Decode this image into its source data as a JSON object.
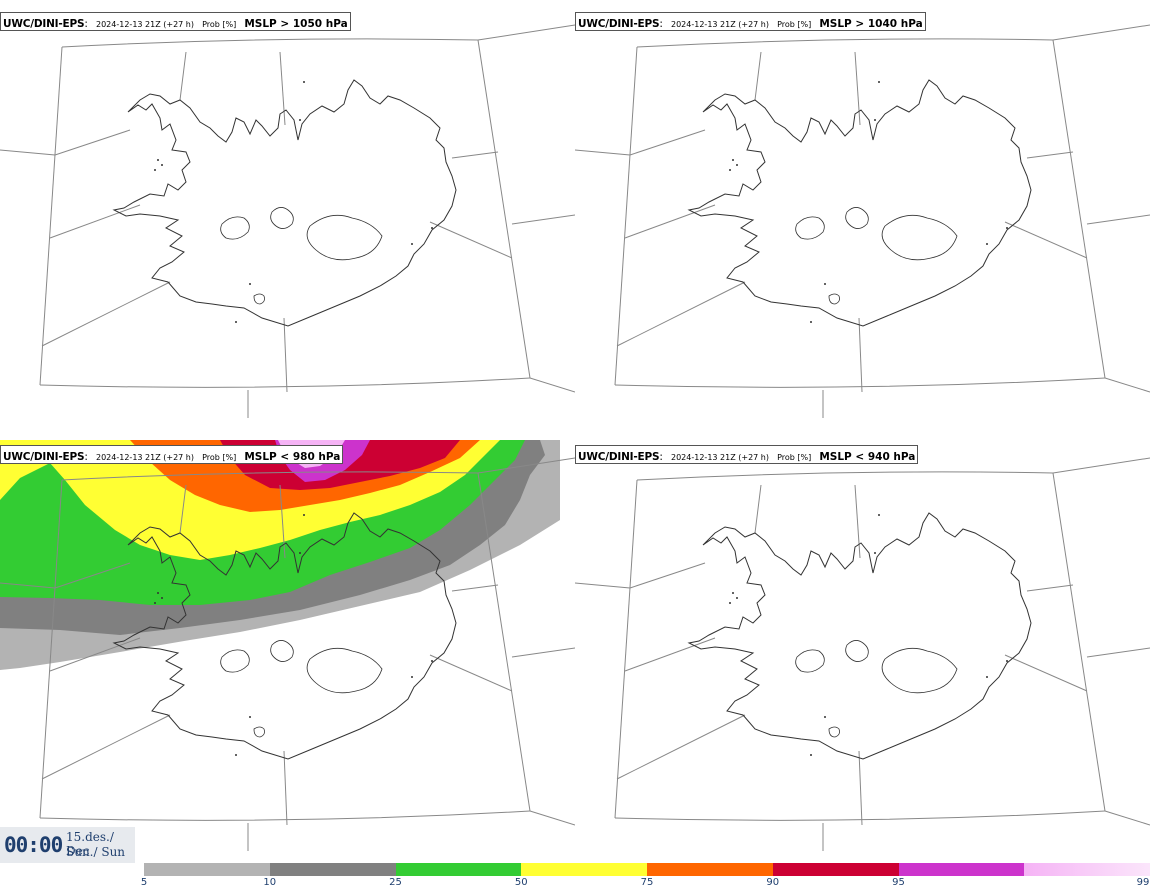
{
  "model": "UWC/DINI-EPS",
  "run_info": "2024-12-13 21Z (+27 h)",
  "prob_label": "Prob [%]",
  "panels": [
    {
      "id": "tl",
      "threshold": "MSLP > 1050 hPa",
      "has_field": false
    },
    {
      "id": "tr",
      "threshold": "MSLP > 1040 hPa",
      "has_field": false
    },
    {
      "id": "bl",
      "threshold": "MSLP < 980 hPa",
      "has_field": true
    },
    {
      "id": "br",
      "threshold": "MSLP < 940 hPa",
      "has_field": false
    }
  ],
  "valid_time": {
    "time": "00:00",
    "date": "15.des./ Dec",
    "day": "Sun./ Sun"
  },
  "legend": {
    "breaks": [
      "5",
      "10",
      "25",
      "50",
      "75",
      "90",
      "95",
      "99"
    ],
    "colors": [
      "#b3b3b3",
      "#808080",
      "#33cc33",
      "#ffff33",
      "#ff6600",
      "#cc0033",
      "#cc33cc",
      "#f5b3f5"
    ]
  },
  "colors": {
    "coast": "#333333",
    "grid": "#888888"
  }
}
